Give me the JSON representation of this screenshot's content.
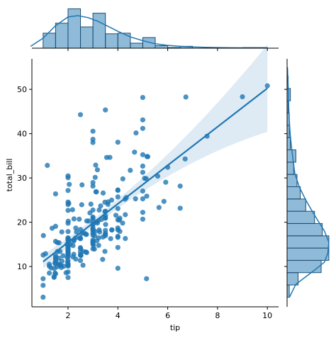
{
  "chart_data": {
    "type": "scatter",
    "kind": "jointplot",
    "xlabel": "tip",
    "ylabel": "total_bill",
    "xlim": [
      0.55,
      10.45
    ],
    "ylim": [
      0.9,
      56.9
    ],
    "xticks": [
      2,
      4,
      6,
      8,
      10
    ],
    "yticks": [
      10,
      20,
      30,
      40,
      50
    ],
    "color": "#1f77b4",
    "points": [
      [
        1.01,
        16.99
      ],
      [
        1.66,
        10.34
      ],
      [
        3.5,
        21.01
      ],
      [
        3.31,
        23.68
      ],
      [
        3.61,
        24.59
      ],
      [
        4.71,
        25.29
      ],
      [
        2.0,
        8.77
      ],
      [
        3.12,
        26.88
      ],
      [
        1.96,
        15.04
      ],
      [
        3.23,
        14.78
      ],
      [
        1.71,
        10.27
      ],
      [
        5.0,
        35.26
      ],
      [
        1.57,
        15.42
      ],
      [
        3.0,
        18.43
      ],
      [
        3.02,
        14.83
      ],
      [
        3.92,
        21.58
      ],
      [
        1.67,
        10.33
      ],
      [
        3.71,
        16.29
      ],
      [
        3.5,
        16.97
      ],
      [
        3.35,
        20.65
      ],
      [
        4.08,
        17.92
      ],
      [
        2.75,
        20.29
      ],
      [
        2.23,
        15.77
      ],
      [
        7.58,
        39.42
      ],
      [
        3.18,
        19.82
      ],
      [
        2.34,
        17.81
      ],
      [
        2.0,
        13.37
      ],
      [
        2.0,
        12.69
      ],
      [
        4.3,
        21.7
      ],
      [
        3.0,
        19.65
      ],
      [
        1.45,
        9.55
      ],
      [
        2.5,
        18.35
      ],
      [
        3.0,
        15.06
      ],
      [
        2.45,
        20.69
      ],
      [
        3.27,
        17.78
      ],
      [
        3.6,
        24.06
      ],
      [
        2.0,
        16.31
      ],
      [
        3.07,
        16.93
      ],
      [
        2.31,
        18.69
      ],
      [
        5.0,
        31.27
      ],
      [
        2.24,
        16.04
      ],
      [
        2.54,
        17.46
      ],
      [
        3.06,
        13.94
      ],
      [
        1.32,
        9.68
      ],
      [
        5.6,
        30.4
      ],
      [
        3.0,
        18.29
      ],
      [
        5.0,
        22.23
      ],
      [
        6.0,
        32.4
      ],
      [
        2.05,
        28.55
      ],
      [
        3.0,
        18.04
      ],
      [
        2.5,
        12.54
      ],
      [
        2.6,
        10.29
      ],
      [
        5.2,
        34.81
      ],
      [
        1.56,
        9.94
      ],
      [
        4.34,
        25.56
      ],
      [
        3.51,
        19.49
      ],
      [
        3.0,
        38.01
      ],
      [
        1.5,
        26.41
      ],
      [
        1.76,
        11.24
      ],
      [
        6.73,
        48.27
      ],
      [
        3.21,
        20.29
      ],
      [
        2.0,
        13.81
      ],
      [
        1.98,
        11.02
      ],
      [
        3.76,
        18.29
      ],
      [
        2.64,
        17.59
      ],
      [
        3.15,
        20.08
      ],
      [
        2.47,
        16.45
      ],
      [
        1.0,
        3.07
      ],
      [
        2.01,
        20.23
      ],
      [
        2.09,
        15.01
      ],
      [
        1.97,
        12.02
      ],
      [
        3.0,
        17.07
      ],
      [
        3.14,
        26.86
      ],
      [
        5.0,
        25.28
      ],
      [
        2.2,
        14.73
      ],
      [
        1.25,
        10.51
      ],
      [
        3.08,
        17.92
      ],
      [
        4.0,
        27.2
      ],
      [
        3.0,
        22.76
      ],
      [
        2.71,
        17.29
      ],
      [
        3.0,
        19.44
      ],
      [
        3.4,
        16.66
      ],
      [
        1.83,
        10.07
      ],
      [
        5.0,
        32.68
      ],
      [
        2.03,
        15.98
      ],
      [
        5.17,
        34.83
      ],
      [
        2.0,
        13.03
      ],
      [
        4.0,
        18.28
      ],
      [
        5.85,
        24.71
      ],
      [
        3.0,
        21.16
      ],
      [
        3.0,
        28.97
      ],
      [
        3.5,
        22.49
      ],
      [
        1.0,
        5.75
      ],
      [
        4.3,
        16.32
      ],
      [
        3.25,
        22.75
      ],
      [
        4.73,
        40.17
      ],
      [
        4.0,
        27.28
      ],
      [
        1.5,
        12.03
      ],
      [
        3.0,
        21.01
      ],
      [
        1.5,
        12.46
      ],
      [
        2.5,
        11.35
      ],
      [
        3.0,
        15.38
      ],
      [
        2.5,
        44.3
      ],
      [
        3.48,
        22.42
      ],
      [
        4.08,
        20.92
      ],
      [
        1.64,
        15.36
      ],
      [
        4.06,
        20.49
      ],
      [
        4.29,
        25.21
      ],
      [
        3.76,
        18.24
      ],
      [
        4.0,
        14.31
      ],
      [
        3.0,
        14.0
      ],
      [
        1.0,
        7.25
      ],
      [
        4.0,
        38.07
      ],
      [
        2.55,
        23.95
      ],
      [
        4.0,
        25.71
      ],
      [
        3.5,
        17.31
      ],
      [
        5.07,
        29.93
      ],
      [
        1.5,
        10.65
      ],
      [
        1.8,
        12.43
      ],
      [
        2.92,
        24.08
      ],
      [
        2.31,
        11.69
      ],
      [
        1.68,
        13.42
      ],
      [
        2.5,
        14.26
      ],
      [
        2.0,
        15.95
      ],
      [
        2.52,
        12.48
      ],
      [
        4.2,
        29.8
      ],
      [
        1.48,
        8.52
      ],
      [
        2.0,
        14.52
      ],
      [
        2.0,
        11.38
      ],
      [
        2.18,
        22.82
      ],
      [
        1.5,
        19.08
      ],
      [
        2.83,
        20.27
      ],
      [
        1.5,
        11.17
      ],
      [
        2.0,
        12.26
      ],
      [
        3.25,
        18.26
      ],
      [
        1.25,
        8.51
      ],
      [
        2.0,
        10.33
      ],
      [
        2.0,
        14.15
      ],
      [
        2.0,
        16.0
      ],
      [
        2.75,
        13.16
      ],
      [
        3.5,
        17.47
      ],
      [
        6.7,
        34.3
      ],
      [
        5.0,
        41.19
      ],
      [
        5.0,
        27.05
      ],
      [
        2.3,
        16.43
      ],
      [
        1.5,
        8.35
      ],
      [
        1.36,
        18.64
      ],
      [
        1.63,
        11.87
      ],
      [
        1.73,
        9.78
      ],
      [
        2.0,
        7.51
      ],
      [
        2.5,
        14.07
      ],
      [
        2.0,
        13.13
      ],
      [
        2.74,
        17.26
      ],
      [
        2.0,
        24.55
      ],
      [
        2.0,
        19.77
      ],
      [
        5.14,
        29.85
      ],
      [
        5.0,
        48.17
      ],
      [
        3.75,
        25.0
      ],
      [
        2.61,
        13.39
      ],
      [
        2.0,
        16.49
      ],
      [
        3.5,
        21.5
      ],
      [
        2.5,
        12.66
      ],
      [
        2.0,
        16.21
      ],
      [
        2.0,
        13.81
      ],
      [
        3.0,
        17.51
      ],
      [
        3.48,
        24.52
      ],
      [
        2.24,
        20.76
      ],
      [
        4.5,
        31.71
      ],
      [
        1.61,
        10.59
      ],
      [
        2.0,
        10.63
      ],
      [
        10.0,
        50.81
      ],
      [
        3.16,
        15.81
      ],
      [
        5.15,
        7.25
      ],
      [
        3.18,
        31.85
      ],
      [
        4.0,
        16.82
      ],
      [
        3.11,
        32.9
      ],
      [
        2.0,
        17.89
      ],
      [
        2.0,
        14.48
      ],
      [
        4.0,
        9.6
      ],
      [
        3.55,
        34.63
      ],
      [
        3.68,
        34.65
      ],
      [
        5.65,
        23.33
      ],
      [
        3.5,
        45.35
      ],
      [
        6.5,
        23.17
      ],
      [
        3.0,
        40.55
      ],
      [
        5.0,
        20.69
      ],
      [
        3.5,
        20.9
      ],
      [
        2.0,
        30.46
      ],
      [
        3.5,
        18.15
      ],
      [
        4.0,
        23.1
      ],
      [
        1.5,
        15.69
      ],
      [
        4.19,
        19.81
      ],
      [
        2.56,
        28.44
      ],
      [
        2.02,
        15.48
      ],
      [
        4.0,
        16.58
      ],
      [
        1.44,
        7.56
      ],
      [
        2.0,
        10.34
      ],
      [
        5.0,
        43.11
      ],
      [
        2.0,
        13.0
      ],
      [
        2.0,
        13.51
      ],
      [
        4.0,
        18.71
      ],
      [
        2.01,
        12.74
      ],
      [
        2.0,
        13.0
      ],
      [
        2.5,
        16.4
      ],
      [
        4.0,
        20.53
      ],
      [
        3.23,
        16.47
      ],
      [
        3.41,
        26.59
      ],
      [
        3.0,
        38.73
      ],
      [
        2.03,
        24.27
      ],
      [
        2.23,
        12.76
      ],
      [
        2.0,
        30.06
      ],
      [
        5.16,
        25.89
      ],
      [
        9.0,
        48.33
      ],
      [
        2.5,
        13.27
      ],
      [
        6.5,
        28.17
      ],
      [
        1.1,
        12.9
      ],
      [
        3.0,
        28.15
      ],
      [
        1.5,
        11.59
      ],
      [
        1.44,
        7.74
      ],
      [
        3.09,
        30.14
      ],
      [
        2.2,
        12.16
      ],
      [
        3.48,
        13.42
      ],
      [
        1.92,
        8.58
      ],
      [
        3.0,
        15.98
      ],
      [
        1.58,
        13.42
      ],
      [
        2.5,
        16.27
      ],
      [
        2.0,
        10.09
      ],
      [
        3.0,
        20.45
      ],
      [
        2.72,
        13.28
      ],
      [
        2.88,
        22.12
      ],
      [
        2.0,
        24.01
      ],
      [
        3.0,
        15.69
      ],
      [
        3.39,
        11.61
      ],
      [
        1.47,
        10.77
      ],
      [
        3.0,
        15.53
      ],
      [
        1.25,
        10.07
      ],
      [
        1.0,
        12.6
      ],
      [
        1.17,
        32.83
      ],
      [
        4.67,
        35.83
      ],
      [
        5.92,
        29.03
      ],
      [
        2.0,
        27.18
      ],
      [
        2.0,
        22.67
      ],
      [
        1.75,
        17.82
      ],
      [
        3.0,
        18.78
      ]
    ],
    "regression": {
      "slope": 4.35,
      "intercept": 6.75,
      "x_range": [
        1.0,
        10.0
      ]
    },
    "tip_histogram": {
      "bins": [
        [
          1.0,
          1.5,
          24
        ],
        [
          1.5,
          2.0,
          40
        ],
        [
          2.0,
          2.5,
          63
        ],
        [
          2.5,
          3.0,
          34
        ],
        [
          3.0,
          3.5,
          56
        ],
        [
          3.5,
          4.0,
          23
        ],
        [
          4.0,
          4.5,
          24
        ],
        [
          4.5,
          5.0,
          8
        ],
        [
          5.0,
          5.5,
          17
        ],
        [
          5.5,
          6.0,
          4
        ],
        [
          6.0,
          6.5,
          1
        ],
        [
          6.5,
          7.0,
          3
        ],
        [
          7.0,
          7.5,
          0
        ],
        [
          7.5,
          8.0,
          1
        ],
        [
          8.0,
          8.5,
          0
        ],
        [
          8.5,
          9.0,
          0
        ],
        [
          9.0,
          9.5,
          1
        ],
        [
          9.5,
          10.0,
          1
        ]
      ],
      "kde": [
        [
          0.5,
          3
        ],
        [
          1.0,
          16
        ],
        [
          1.5,
          36
        ],
        [
          2.0,
          50
        ],
        [
          2.4,
          52
        ],
        [
          2.8,
          49
        ],
        [
          3.2,
          43
        ],
        [
          3.6,
          35
        ],
        [
          4.0,
          27
        ],
        [
          4.5,
          18
        ],
        [
          5.0,
          12
        ],
        [
          5.5,
          7
        ],
        [
          6.0,
          4.5
        ],
        [
          6.5,
          3
        ],
        [
          7.0,
          2
        ],
        [
          7.5,
          1.4
        ],
        [
          8.0,
          1
        ],
        [
          8.5,
          0.7
        ],
        [
          9.0,
          0.6
        ],
        [
          9.5,
          0.4
        ],
        [
          10.0,
          0.2
        ]
      ]
    },
    "total_bill_histogram": {
      "bins": [
        [
          3.07,
          5.84,
          2
        ],
        [
          5.84,
          8.62,
          10
        ],
        [
          8.62,
          11.39,
          31
        ],
        [
          11.39,
          14.16,
          38
        ],
        [
          14.16,
          16.93,
          38
        ],
        [
          16.93,
          19.71,
          32
        ],
        [
          19.71,
          22.48,
          25
        ],
        [
          22.48,
          25.25,
          17
        ],
        [
          25.25,
          28.02,
          12
        ],
        [
          28.02,
          30.79,
          9
        ],
        [
          30.79,
          33.56,
          6
        ],
        [
          33.56,
          36.34,
          8
        ],
        [
          36.34,
          39.11,
          3
        ],
        [
          39.11,
          41.88,
          2
        ],
        [
          41.88,
          44.65,
          2
        ],
        [
          44.65,
          47.42,
          1
        ],
        [
          47.42,
          50.2,
          3
        ],
        [
          50.2,
          52.97,
          1
        ]
      ],
      "kde": [
        [
          3.0,
          2
        ],
        [
          6.0,
          8
        ],
        [
          9.0,
          24
        ],
        [
          11.0,
          34
        ],
        [
          13.0,
          37
        ],
        [
          15.5,
          38
        ],
        [
          18.0,
          34
        ],
        [
          20.0,
          29
        ],
        [
          22.0,
          24
        ],
        [
          25.0,
          17
        ],
        [
          28.0,
          11
        ],
        [
          31.0,
          7
        ],
        [
          34.0,
          5.5
        ],
        [
          37.0,
          4
        ],
        [
          40.0,
          2.8
        ],
        [
          43.0,
          2
        ],
        [
          46.0,
          1.5
        ],
        [
          49.0,
          1.2
        ],
        [
          52.0,
          0.8
        ],
        [
          55.0,
          0.3
        ]
      ]
    }
  }
}
